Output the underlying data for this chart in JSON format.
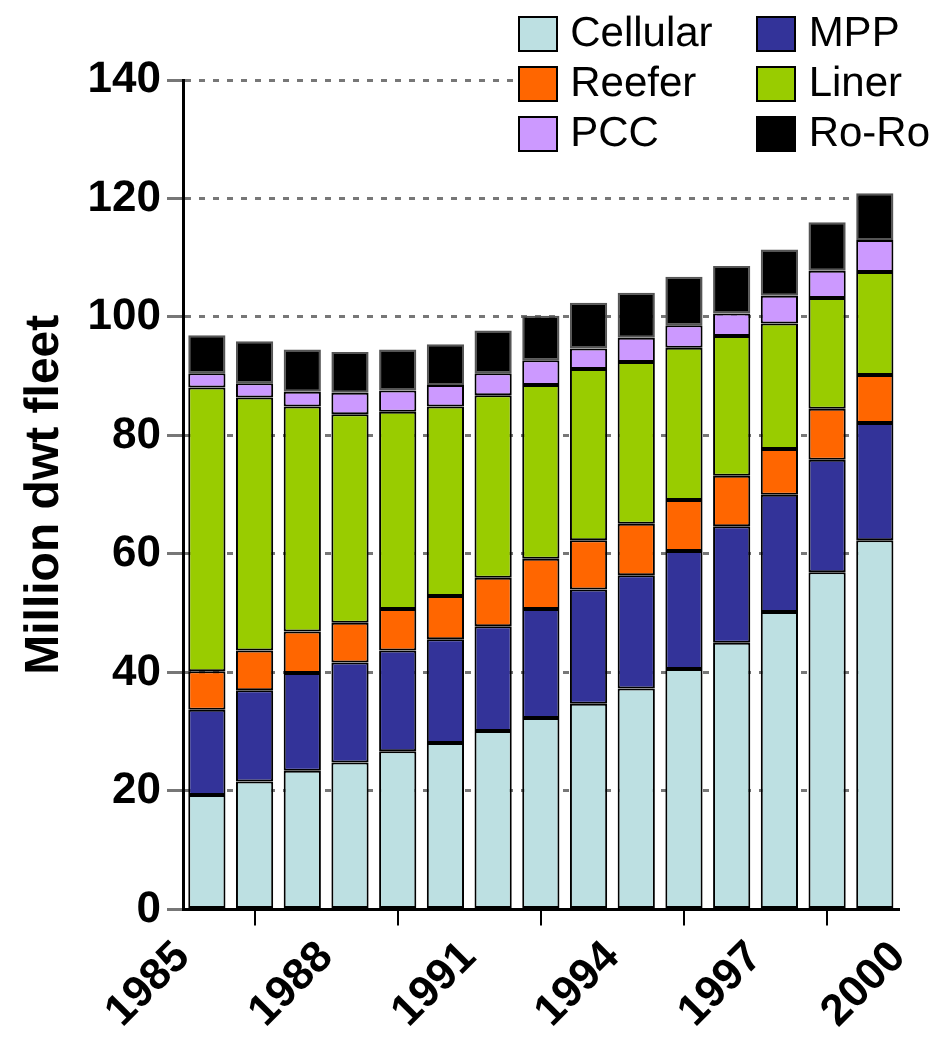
{
  "chart_data": {
    "type": "bar",
    "stacked": true,
    "ylabel": "Million dwt fleet",
    "x": [
      1985.5,
      1986.5,
      1987.5,
      1988.5,
      1989.5,
      1990.5,
      1991.5,
      1992.5,
      1993.5,
      1994.5,
      1995.5,
      1996.5,
      1997.5,
      1998.5,
      1999.5
    ],
    "xlim": [
      1985,
      2000
    ],
    "xticks": [
      1985,
      1988,
      1991,
      1994,
      1997,
      2000
    ],
    "ylim": [
      0,
      140
    ],
    "yticks": [
      0,
      20,
      40,
      60,
      80,
      100,
      120,
      140
    ],
    "grid": "y",
    "legend": "top right",
    "series": [
      {
        "name": "Cellular",
        "color": "#bde0e2",
        "values": [
          19.3,
          21.6,
          23.4,
          24.8,
          26.7,
          28.1,
          30.1,
          32.3,
          34.7,
          37.3,
          40.6,
          45.0,
          50.2,
          56.9,
          62.3
        ]
      },
      {
        "name": "MPP",
        "color": "#333399",
        "values": [
          14.4,
          15.4,
          16.5,
          16.9,
          17.0,
          17.5,
          17.7,
          18.4,
          19.3,
          19.1,
          19.9,
          19.7,
          19.8,
          19.0,
          19.8
        ]
      },
      {
        "name": "Reefer",
        "color": "#ff6600",
        "values": [
          6.5,
          6.7,
          7.0,
          6.7,
          7.0,
          7.3,
          8.2,
          8.5,
          8.3,
          8.7,
          8.6,
          8.5,
          7.7,
          8.6,
          8.1
        ]
      },
      {
        "name": "Liner",
        "color": "#99cc00",
        "values": [
          47.9,
          42.7,
          38.0,
          35.2,
          33.3,
          32.0,
          30.8,
          29.3,
          28.9,
          27.3,
          25.7,
          23.6,
          21.2,
          18.7,
          17.4
        ]
      },
      {
        "name": "PCC",
        "color": "#cc99ff",
        "values": [
          2.4,
          2.4,
          2.5,
          3.6,
          3.6,
          3.6,
          3.7,
          4.2,
          3.5,
          4.1,
          3.8,
          3.8,
          4.7,
          4.6,
          5.4
        ]
      },
      {
        "name": "Ro-Ro",
        "color": "#000000",
        "values": [
          6.4,
          7.1,
          7.1,
          6.9,
          6.9,
          6.9,
          7.2,
          7.5,
          7.7,
          7.6,
          8.2,
          8.0,
          7.8,
          8.2,
          7.9
        ]
      }
    ]
  }
}
